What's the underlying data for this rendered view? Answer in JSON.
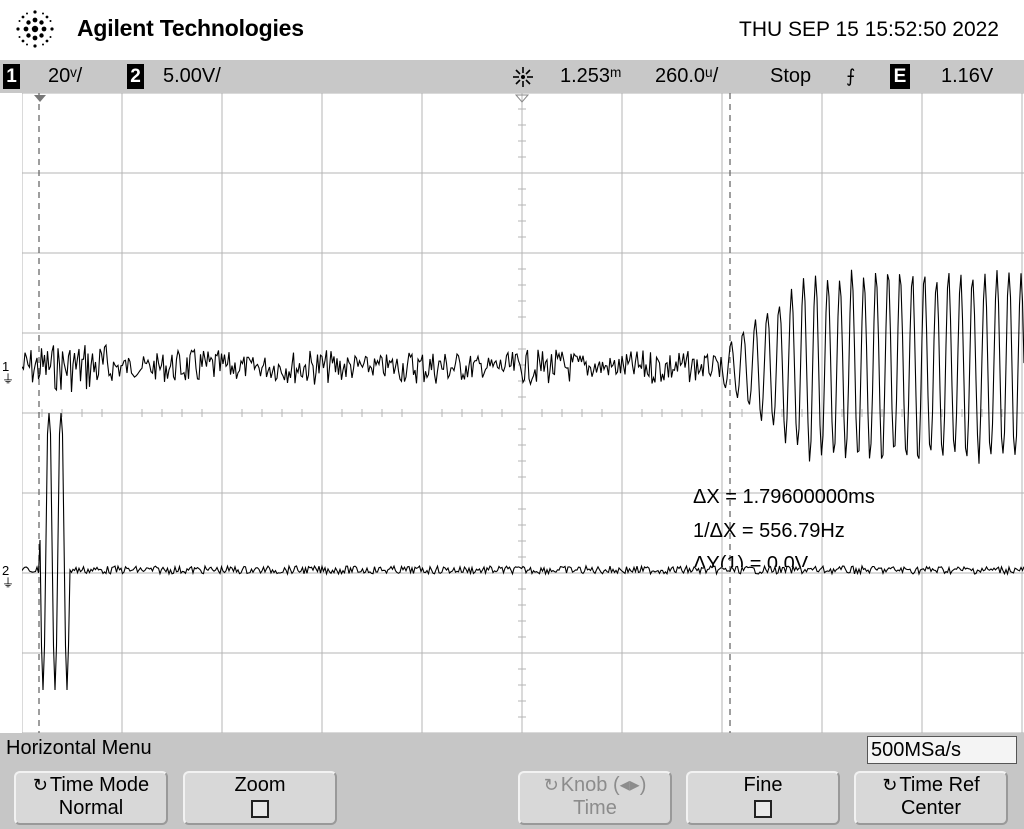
{
  "header": {
    "brand": "Agilent Technologies",
    "datetime": "THU SEP 15 15:52:50 2022"
  },
  "status": {
    "ch1_num": "1",
    "ch1_scale": "20ᵛ/",
    "ch2_num": "2",
    "ch2_scale": "5.00V/",
    "delay": "1.253ᵐ",
    "timebase": "260.0ᵘ/",
    "run_state": "Stop",
    "trigger_slope": "⨍",
    "trigger_source": "E",
    "trigger_level": "1.16V"
  },
  "markers": {
    "ch1": "1",
    "ch2": "2"
  },
  "measurements": {
    "dx": "ΔX = 1.79600000ms",
    "inv_dx": "1/ΔX = 556.79Hz",
    "dy": "ΔY(1) = 0.0V"
  },
  "menu": {
    "title": "Horizontal Menu",
    "sample_rate": "500MSa/s",
    "softkeys": [
      {
        "line1": "Time Mode",
        "line2": "Normal"
      },
      {
        "line1": "Zoom",
        "line2": ""
      },
      {
        "line1": "Knob (◂▸)",
        "line2": "Time"
      },
      {
        "line1": "Fine",
        "line2": ""
      },
      {
        "line1": "Time Ref",
        "line2": "Center"
      }
    ]
  },
  "colors": {
    "grid": "#b4b4b4",
    "trace": "#000000",
    "cursor": "#6a6a6a",
    "statusbar": "#c8c8c8",
    "menubar": "#c6c6c6"
  }
}
